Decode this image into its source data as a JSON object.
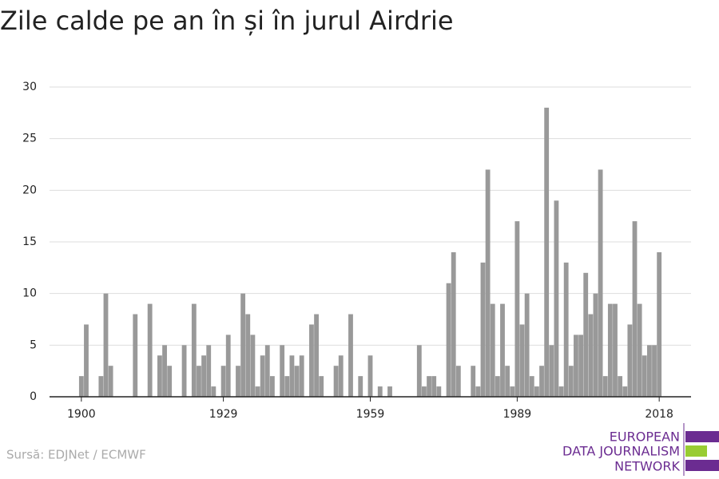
{
  "chart_data": {
    "type": "bar",
    "title": "Zile calde pe an în și în jurul Airdrie",
    "x": [
      1900,
      1901,
      1902,
      1903,
      1904,
      1905,
      1906,
      1907,
      1908,
      1909,
      1910,
      1911,
      1912,
      1913,
      1914,
      1915,
      1916,
      1917,
      1918,
      1919,
      1920,
      1921,
      1922,
      1923,
      1924,
      1925,
      1926,
      1927,
      1928,
      1929,
      1930,
      1931,
      1932,
      1933,
      1934,
      1935,
      1936,
      1937,
      1938,
      1939,
      1940,
      1941,
      1942,
      1943,
      1944,
      1945,
      1946,
      1947,
      1948,
      1949,
      1950,
      1951,
      1952,
      1953,
      1954,
      1955,
      1956,
      1957,
      1958,
      1959,
      1960,
      1961,
      1962,
      1963,
      1964,
      1965,
      1966,
      1967,
      1968,
      1969,
      1970,
      1971,
      1972,
      1973,
      1974,
      1975,
      1976,
      1977,
      1978,
      1979,
      1980,
      1981,
      1982,
      1983,
      1984,
      1985,
      1986,
      1987,
      1988,
      1989,
      1990,
      1991,
      1992,
      1993,
      1994,
      1995,
      1996,
      1997,
      1998,
      1999,
      2000,
      2001,
      2002,
      2003,
      2004,
      2005,
      2006,
      2007,
      2008,
      2009,
      2010,
      2011,
      2012,
      2013,
      2014,
      2015,
      2016,
      2017,
      2018
    ],
    "values": [
      2,
      7,
      0,
      0,
      2,
      10,
      3,
      0,
      0,
      0,
      0,
      8,
      0,
      0,
      9,
      0,
      4,
      5,
      3,
      0,
      0,
      5,
      0,
      9,
      3,
      4,
      5,
      1,
      0,
      3,
      6,
      0,
      3,
      10,
      8,
      6,
      1,
      4,
      5,
      2,
      0,
      5,
      2,
      4,
      3,
      4,
      0,
      7,
      8,
      2,
      0,
      0,
      3,
      4,
      0,
      8,
      0,
      2,
      0,
      4,
      0,
      1,
      0,
      1,
      0,
      0,
      0,
      0,
      0,
      5,
      1,
      2,
      2,
      1,
      0,
      11,
      14,
      3,
      0,
      0,
      3,
      1,
      13,
      22,
      9,
      2,
      9,
      3,
      1,
      17,
      7,
      10,
      2,
      1,
      3,
      28,
      5,
      19,
      1,
      13,
      3,
      6,
      6,
      12,
      8,
      10,
      22,
      2,
      9,
      9,
      2,
      1,
      7,
      17,
      9,
      4,
      5,
      5,
      14
    ],
    "color": "#999999",
    "xlim": [
      1893.5,
      2024.5
    ],
    "xticks": [
      1900,
      1929,
      1959,
      1989,
      2018
    ],
    "ylim": [
      0,
      30
    ],
    "yticks": [
      0,
      5,
      10,
      15,
      20,
      25,
      30
    ],
    "grid": true,
    "source": "Sursă: EDJNet / ECMWF",
    "logo": [
      "EUROPEAN",
      "DATA JOURNALISM",
      "NETWORK"
    ]
  }
}
